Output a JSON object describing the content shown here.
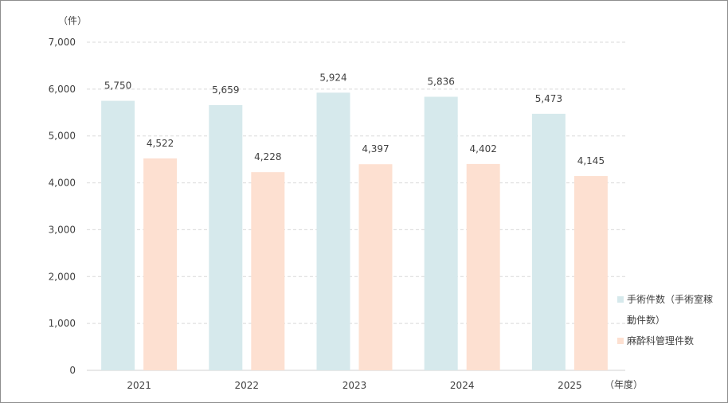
{
  "chart_data": {
    "type": "bar",
    "y_unit": "（件）",
    "x_unit": "（年度）",
    "categories": [
      "2021",
      "2022",
      "2023",
      "2024",
      "2025"
    ],
    "series": [
      {
        "name": "手術件数（手術室稼動件数）",
        "values": [
          5750,
          5659,
          5924,
          5836,
          5473
        ],
        "labels": [
          "5,750",
          "5,659",
          "5,924",
          "5,836",
          "5,473"
        ],
        "color": "#d6e9ec"
      },
      {
        "name": "麻酔科管理件数",
        "values": [
          4522,
          4228,
          4397,
          4402,
          4145
        ],
        "labels": [
          "4,522",
          "4,228",
          "4,397",
          "4,402",
          "4,145"
        ],
        "color": "#fde0d1"
      }
    ],
    "yticks": [
      "0",
      "1,000",
      "2,000",
      "3,000",
      "4,000",
      "5,000",
      "6,000",
      "7,000"
    ],
    "ylim": [
      0,
      7000
    ],
    "grid": true,
    "legend_position": "right"
  }
}
